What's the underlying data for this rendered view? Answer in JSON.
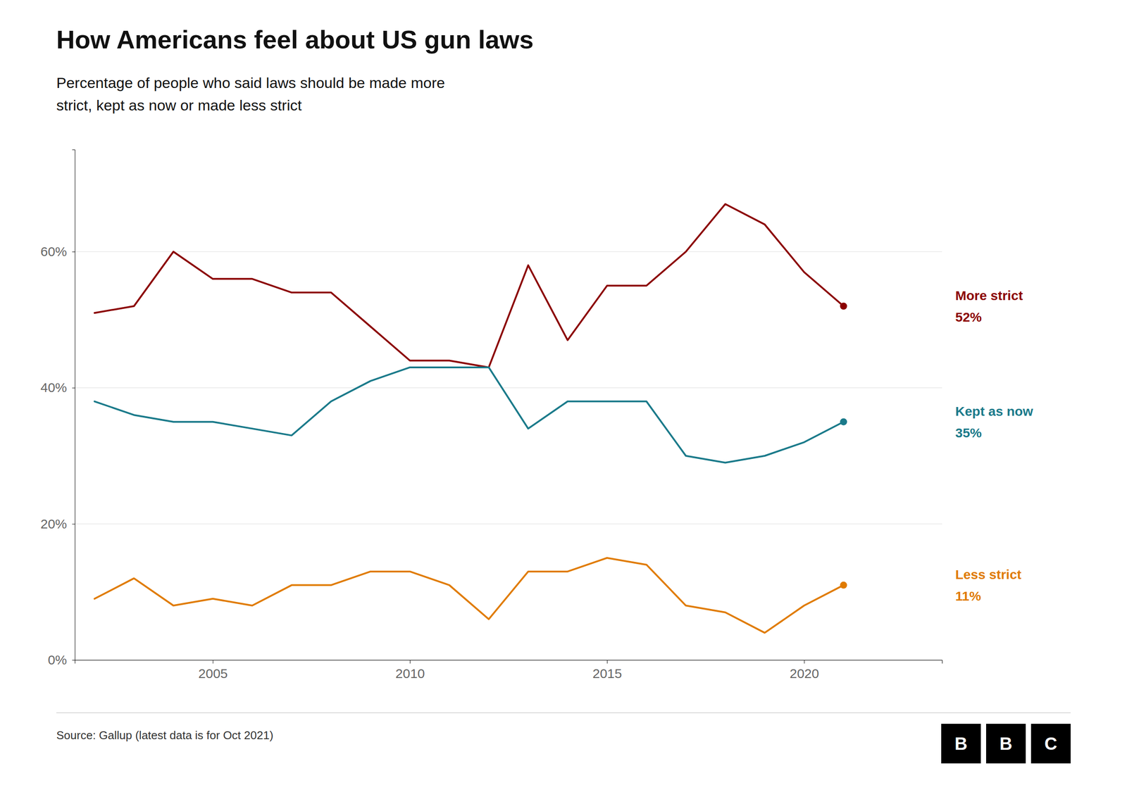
{
  "chart_data": {
    "type": "line",
    "title": "How Americans feel about US gun laws",
    "subtitle": "Percentage of people who said laws should be made more\nstrict, kept as now or made less strict",
    "source": "Source: Gallup (latest data is for Oct 2021)",
    "annotations": [
      "B",
      "B",
      "C"
    ],
    "x": [
      2002,
      2003,
      2004,
      2005,
      2006,
      2007,
      2008,
      2009,
      2010,
      2011,
      2012,
      2013,
      2014,
      2015,
      2016,
      2017,
      2018,
      2019,
      2020,
      2021
    ],
    "series": [
      {
        "name": "More strict",
        "color": "#8B0000",
        "values": [
          51,
          52,
          60,
          56,
          56,
          54,
          54,
          49,
          44,
          44,
          43,
          58,
          47,
          55,
          55,
          60,
          67,
          64,
          57,
          52
        ],
        "value_labels": [
          null,
          null,
          null,
          null,
          null,
          null,
          null,
          null,
          null,
          null,
          null,
          null,
          null,
          null,
          null,
          null,
          null,
          null,
          null,
          "52%"
        ]
      },
      {
        "name": "Kept as now",
        "color": "#1a7a8a",
        "values": [
          38,
          36,
          35,
          35,
          34,
          33,
          38,
          41,
          43,
          43,
          43,
          34,
          38,
          38,
          38,
          30,
          29,
          30,
          32,
          35
        ],
        "value_labels": [
          null,
          null,
          null,
          null,
          null,
          null,
          null,
          null,
          null,
          null,
          null,
          null,
          null,
          null,
          null,
          null,
          null,
          null,
          null,
          "35%"
        ]
      },
      {
        "name": "Less strict",
        "color": "#e07b00",
        "values": [
          9,
          12,
          8,
          9,
          8,
          11,
          11,
          13,
          13,
          11,
          6,
          13,
          13,
          15,
          14,
          8,
          7,
          4,
          8,
          11
        ],
        "value_labels": [
          null,
          null,
          null,
          null,
          null,
          null,
          null,
          null,
          null,
          null,
          null,
          null,
          null,
          null,
          null,
          null,
          null,
          null,
          null,
          "11%"
        ]
      }
    ],
    "xlim": [
      2001.5,
      2023.5
    ],
    "xticks": [
      2005,
      2010,
      2015,
      2020
    ],
    "ylim": [
      0,
      75
    ],
    "yticks": [
      {
        "value": 0,
        "label": "0%"
      },
      {
        "value": 20,
        "label": "20%"
      },
      {
        "value": 40,
        "label": "40%"
      },
      {
        "value": 60,
        "label": "60%"
      }
    ],
    "grid": true
  }
}
